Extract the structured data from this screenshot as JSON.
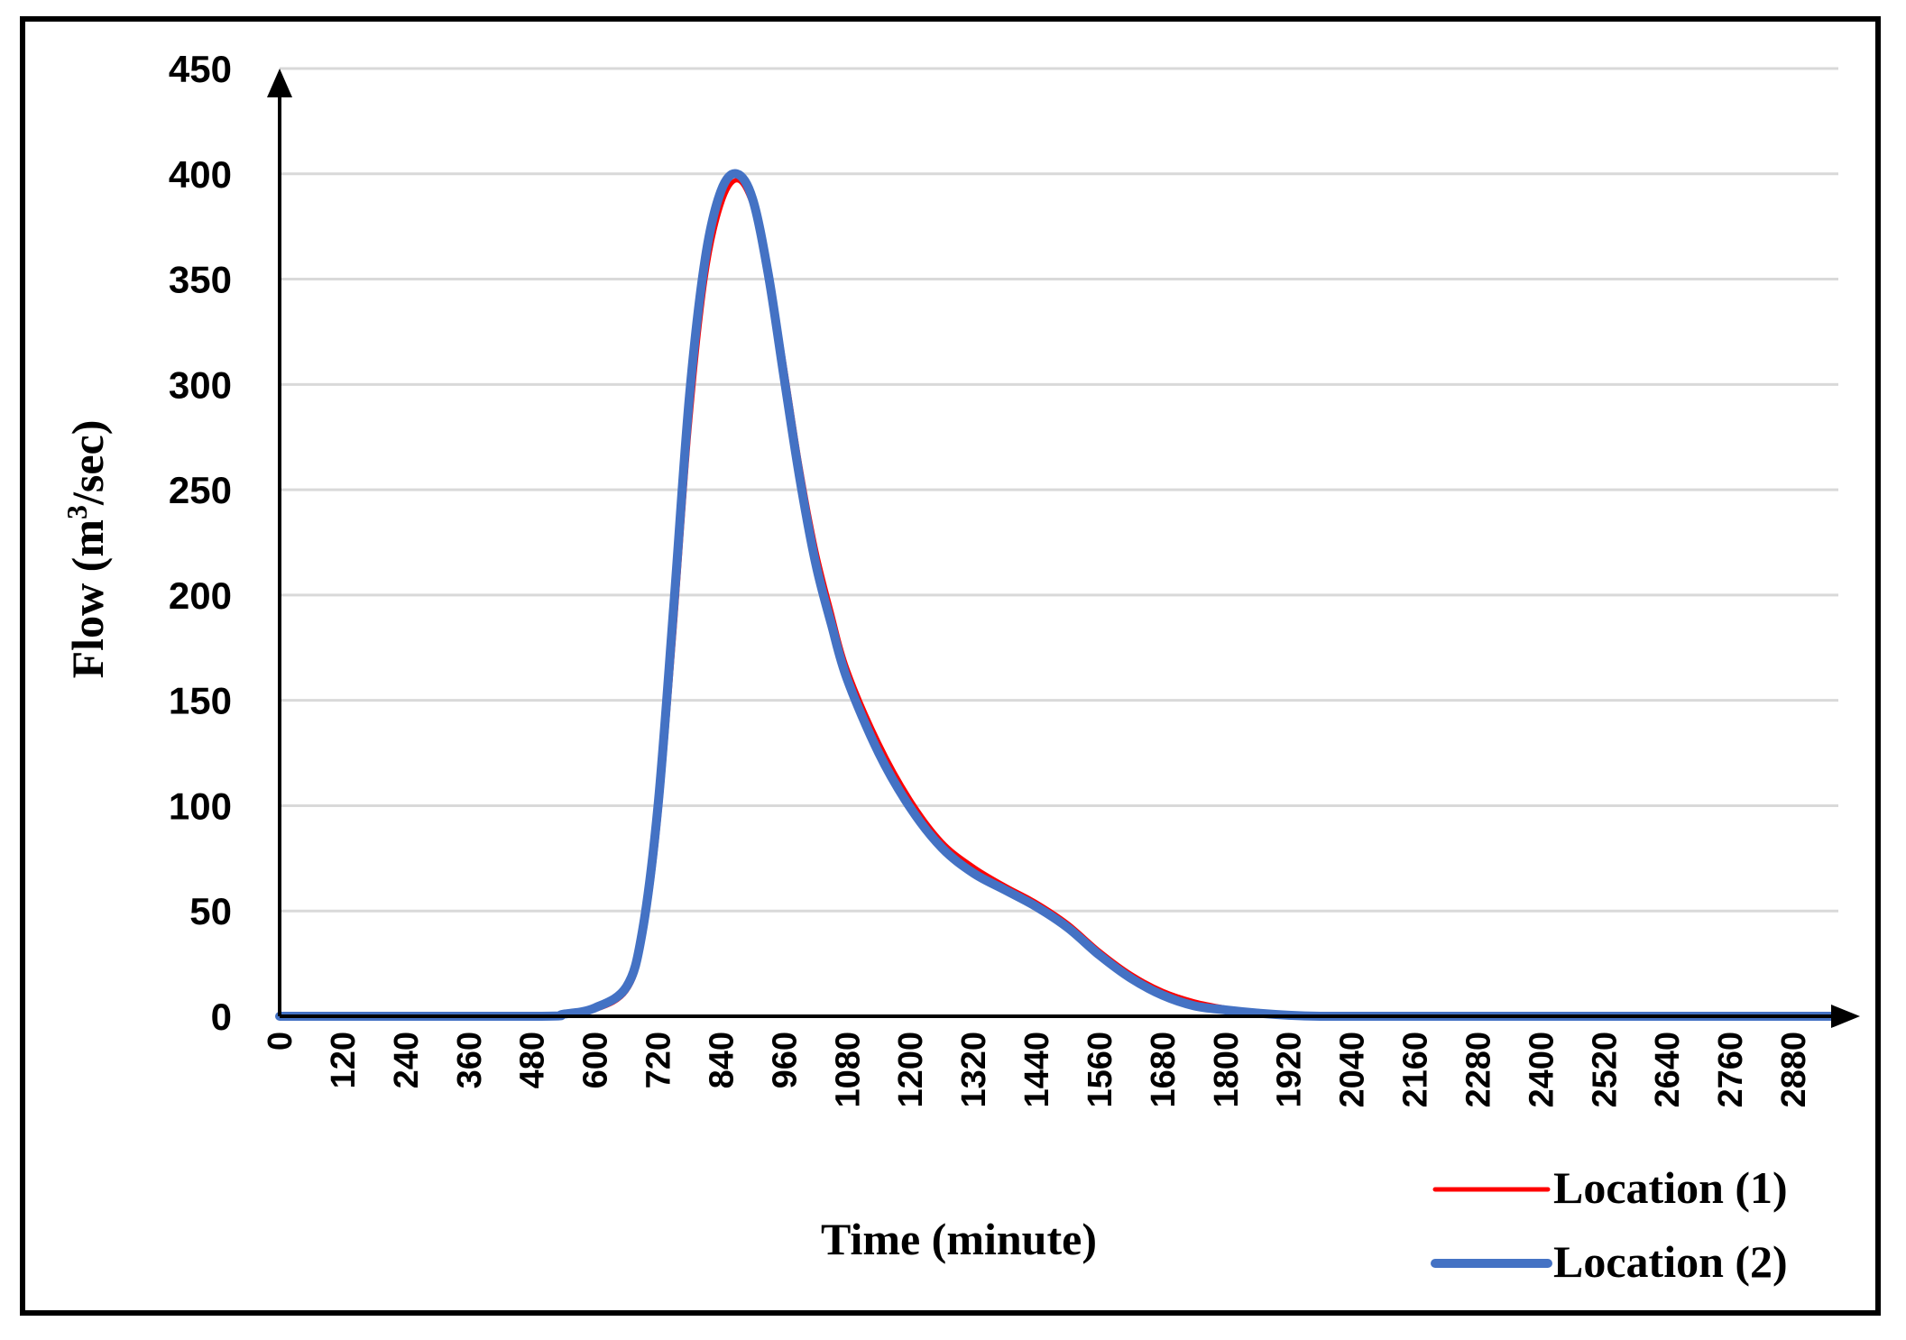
{
  "chart_data": {
    "type": "line",
    "title": "",
    "xlabel": "Time (minute)",
    "ylabel": {
      "prefix": "Flow (m",
      "superscript": "3",
      "suffix": "/sec)"
    },
    "xlim": [
      0,
      3000
    ],
    "ylim": [
      0,
      450
    ],
    "xticks": [
      "0",
      "120",
      "240",
      "360",
      "480",
      "600",
      "720",
      "840",
      "960",
      "1080",
      "1200",
      "1320",
      "1440",
      "1560",
      "1680",
      "1800",
      "1920",
      "2040",
      "2160",
      "2280",
      "2400",
      "2520",
      "2640",
      "2760",
      "2880"
    ],
    "yticks": [
      "0",
      "50",
      "100",
      "150",
      "200",
      "250",
      "300",
      "350",
      "400",
      "450"
    ],
    "grid": true,
    "legend_position": "bottom-right",
    "series": [
      {
        "name": "Location (1)",
        "color": "#ff0000",
        "x": [
          0,
          480,
          540,
          600,
          660,
          690,
          720,
          750,
          780,
          810,
          840,
          870,
          900,
          930,
          960,
          990,
          1020,
          1050,
          1080,
          1140,
          1200,
          1260,
          1320,
          1380,
          1440,
          1500,
          1560,
          1620,
          1680,
          1740,
          1800,
          1860,
          1920,
          1980,
          2040,
          2100,
          3000
        ],
        "y": [
          0,
          0,
          1,
          3,
          12,
          35,
          90,
          180,
          280,
          350,
          385,
          397,
          385,
          355,
          310,
          262,
          222,
          192,
          165,
          130,
          103,
          83,
          71,
          62,
          54,
          44,
          31,
          20,
          12,
          7,
          4,
          2,
          1,
          0.5,
          0,
          0,
          0
        ]
      },
      {
        "name": "Location (2)",
        "color": "#4472c4",
        "x": [
          0,
          480,
          540,
          600,
          660,
          690,
          720,
          750,
          780,
          810,
          840,
          870,
          900,
          930,
          960,
          990,
          1020,
          1050,
          1080,
          1140,
          1200,
          1260,
          1320,
          1380,
          1440,
          1500,
          1560,
          1620,
          1680,
          1740,
          1800,
          1860,
          1920,
          1980,
          2040,
          2100,
          3000
        ],
        "y": [
          0,
          0,
          1,
          4,
          14,
          40,
          100,
          195,
          295,
          360,
          392,
          400,
          388,
          352,
          303,
          255,
          215,
          186,
          160,
          125,
          99,
          80,
          68,
          60,
          52,
          42,
          29,
          18,
          10,
          5,
          3,
          1.5,
          0.5,
          0,
          0,
          0,
          0
        ]
      }
    ]
  }
}
